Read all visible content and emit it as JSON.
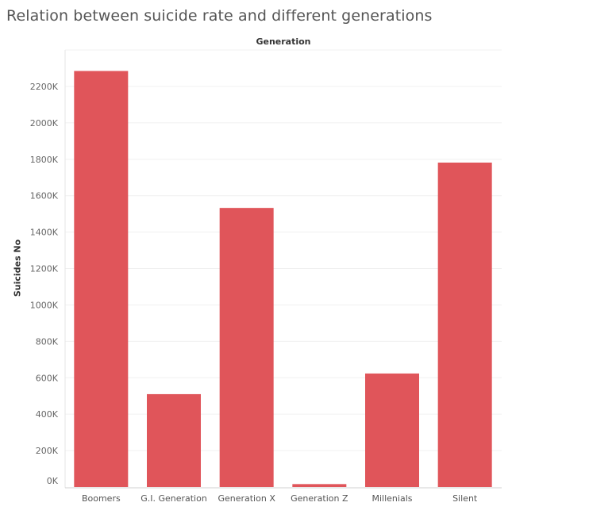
{
  "title": "Relation between suicide rate and different generations",
  "chart_data": {
    "type": "bar",
    "title": "Relation between suicide rate and different generations",
    "column_header": "Generation",
    "xlabel": "",
    "ylabel": "Suicides No",
    "categories": [
      "Boomers",
      "G.I. Generation",
      "Generation X",
      "Generation Z",
      "Millenials",
      "Silent"
    ],
    "values": [
      2284982,
      510009,
      1532804,
      15906,
      623459,
      1781744
    ],
    "ylim": [
      0,
      2400000
    ],
    "yticks": [
      0,
      200000,
      400000,
      600000,
      800000,
      1000000,
      1200000,
      1400000,
      1600000,
      1800000,
      2000000,
      2200000
    ],
    "ytick_labels": [
      "0K",
      "200K",
      "400K",
      "600K",
      "800K",
      "1000K",
      "1200K",
      "1400K",
      "1600K",
      "1800K",
      "2000K",
      "2200K"
    ],
    "bar_color": "#e0555a",
    "grid": true
  }
}
